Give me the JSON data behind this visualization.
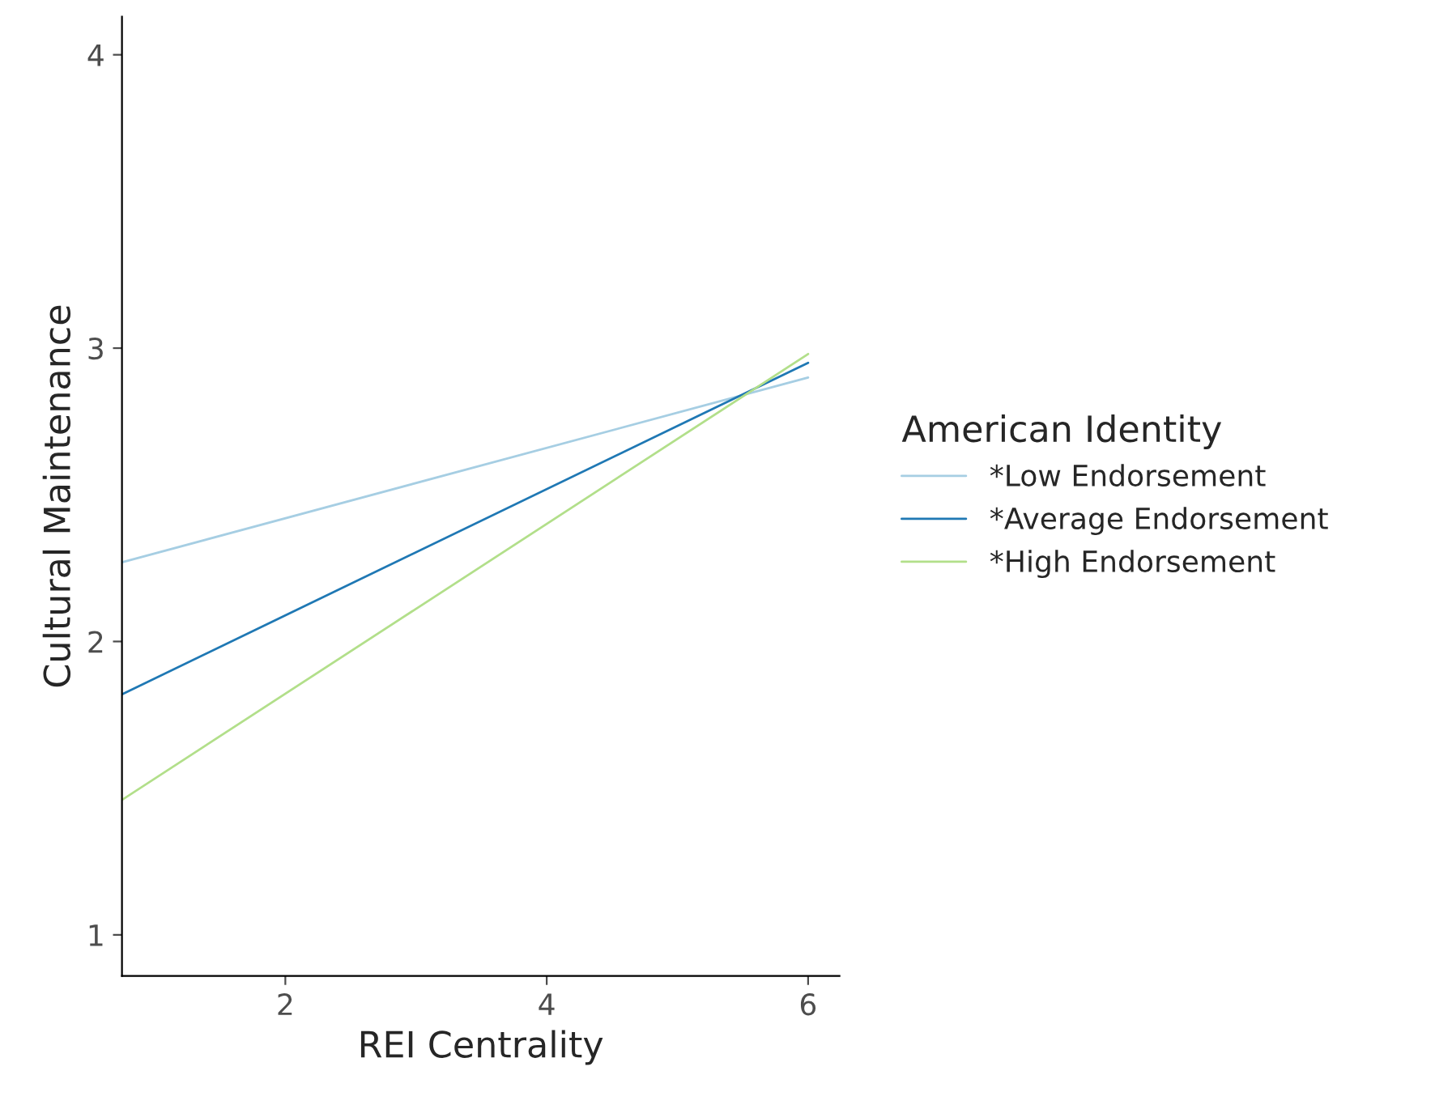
{
  "chart_data": {
    "type": "line",
    "xlabel": "REI Centrality",
    "ylabel": "Cultural Maintenance",
    "legend_title": "American Identity",
    "legend": "right",
    "grid": false,
    "marker": "none",
    "line_style": "solid",
    "xlim": [
      0.75,
      6.24
    ],
    "xticks": [
      2,
      4,
      6
    ],
    "ylim": [
      0.86,
      4.13
    ],
    "yticks": [
      1,
      2,
      3,
      4
    ],
    "x": [
      0.75,
      6
    ],
    "series": [
      {
        "name": "*Low Endorsement",
        "color": "#a6cee3",
        "values": [
          2.27,
          2.9
        ]
      },
      {
        "name": "*Average Endorsement",
        "color": "#1f78b4",
        "values": [
          1.82,
          2.95
        ]
      },
      {
        "name": "*High Endorsement",
        "color": "#b2df8a",
        "values": [
          1.46,
          2.98
        ]
      }
    ]
  }
}
